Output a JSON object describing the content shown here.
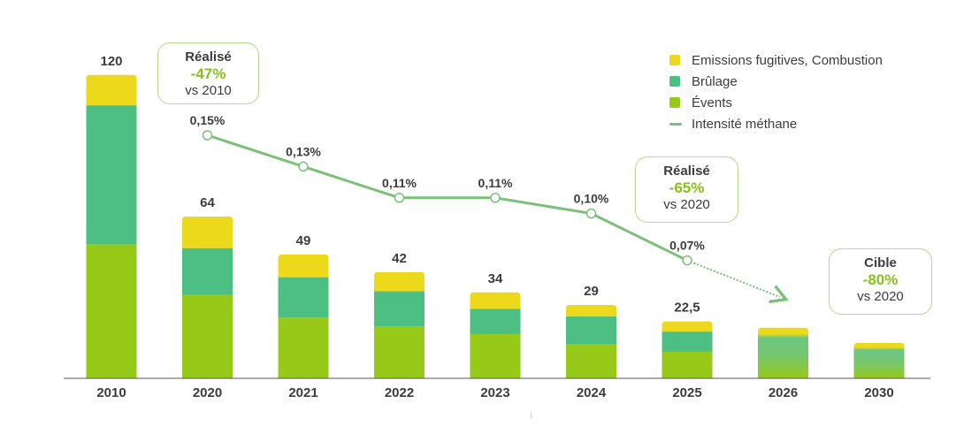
{
  "chart_data": {
    "type": "bar",
    "stacked": true,
    "categories": [
      "2010",
      "2020",
      "2021",
      "2022",
      "2023",
      "2024",
      "2025",
      "2026",
      "2030"
    ],
    "totals": [
      "120",
      "64",
      "49",
      "42",
      "34",
      "29",
      "22,5",
      "",
      ""
    ],
    "series": [
      {
        "name": "Évents",
        "color": "#97c918",
        "values": [
          53,
          33,
          24,
          20.5,
          17.5,
          13.5,
          10.5,
          null,
          null
        ]
      },
      {
        "name": "Brûlage",
        "color": "#4ebf82",
        "values": [
          55,
          18.5,
          16,
          14,
          10,
          11,
          8,
          null,
          null
        ]
      },
      {
        "name": "Emissions fugitives, Combustion",
        "color": "#edd91c",
        "values": [
          12,
          12.5,
          9,
          7.5,
          6.5,
          4.5,
          4,
          null,
          null
        ]
      }
    ],
    "targets": [
      {
        "category": "2026",
        "total": 20
      },
      {
        "category": "2030",
        "total": 14
      }
    ],
    "methane_intensity": {
      "name": "Intensité méthane",
      "color": "#7cc07a",
      "points": [
        {
          "category": "2020",
          "value": 0.15,
          "label": "0,15%"
        },
        {
          "category": "2021",
          "value": 0.13,
          "label": "0,13%"
        },
        {
          "category": "2022",
          "value": 0.11,
          "label": "0,11%"
        },
        {
          "category": "2023",
          "value": 0.11,
          "label": "0,11%"
        },
        {
          "category": "2024",
          "value": 0.1,
          "label": "0,10%"
        },
        {
          "category": "2025",
          "value": 0.07,
          "label": "0,07%"
        }
      ]
    },
    "ylim": [
      0,
      125
    ],
    "legend_placement": "top-right"
  },
  "legend": [
    {
      "label": "Emissions fugitives, Combustion",
      "color": "#edd91c",
      "kind": "box"
    },
    {
      "label": "Brûlage",
      "color": "#4ebf82",
      "kind": "box"
    },
    {
      "label": "Évents",
      "color": "#97c918",
      "kind": "box"
    },
    {
      "label": "Intensité méthane",
      "color": "#7cc07a",
      "kind": "line"
    }
  ],
  "callouts": {
    "c1": {
      "head": "Réalisé",
      "pct": "-47%",
      "sub": "vs 2010"
    },
    "c2": {
      "head": "Réalisé",
      "pct": "-65%",
      "sub": "vs 2020"
    },
    "c3": {
      "head": "Cible",
      "pct": "-80%",
      "sub": "vs 2020"
    }
  }
}
